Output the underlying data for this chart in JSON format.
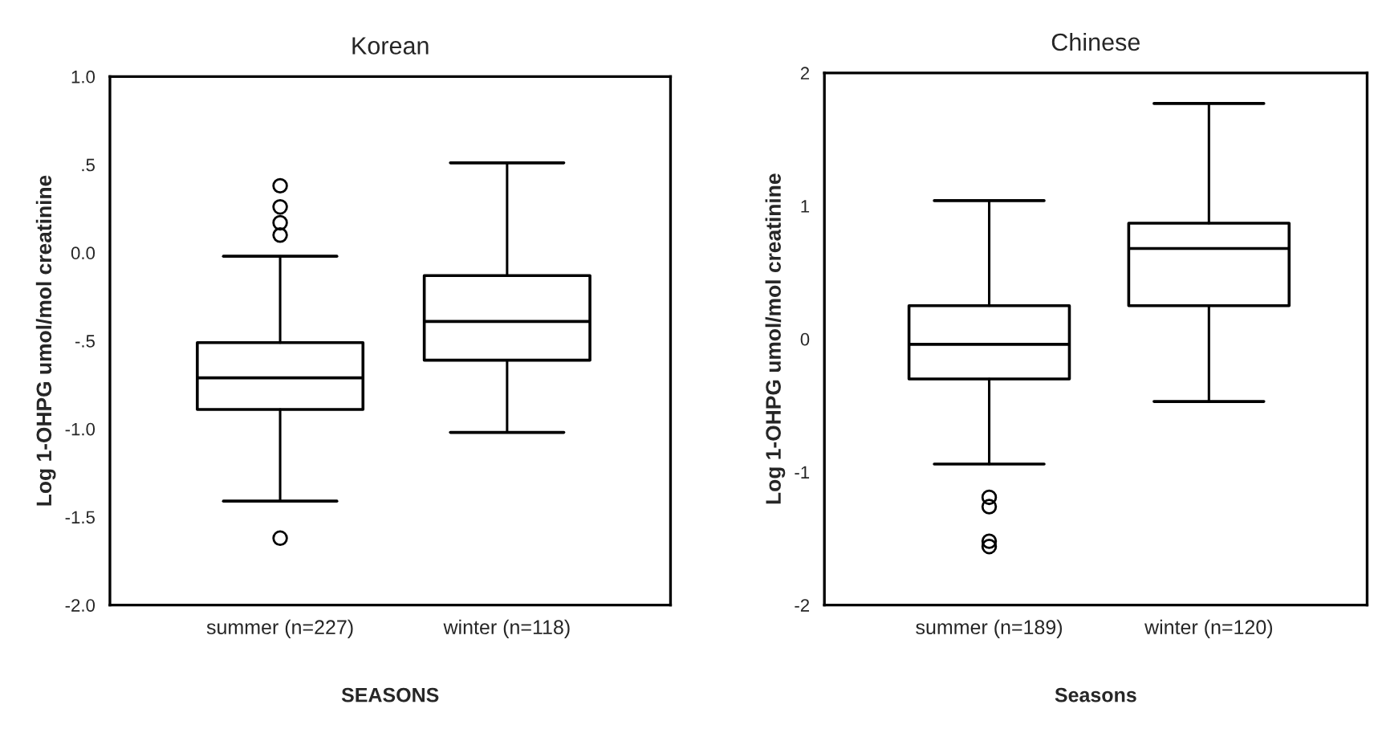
{
  "chart_data": [
    {
      "type": "box",
      "title": "Korean",
      "xlabel": "SEASONS",
      "ylabel": "Log 1-OHPG umol/mol creatinine",
      "categories": [
        "summer (n=227)",
        "winter (n=118)"
      ],
      "boxes": [
        {
          "low": -1.41,
          "q1": -0.89,
          "median": -0.71,
          "q3": -0.51,
          "high": -0.02,
          "outliers": [
            0.38,
            0.26,
            0.17,
            0.1,
            -1.62
          ]
        },
        {
          "low": -1.02,
          "q1": -0.61,
          "median": -0.39,
          "q3": -0.13,
          "high": 0.51
        }
      ],
      "ylim": [
        -2.0,
        1.0
      ],
      "yticks": [
        {
          "value": 1.0,
          "label": "1.0"
        },
        {
          "value": 0.5,
          "label": ".5"
        },
        {
          "value": 0.0,
          "label": "0.0"
        },
        {
          "value": -0.5,
          "label": "-.5"
        },
        {
          "value": -1.0,
          "label": "-1.0"
        },
        {
          "value": -1.5,
          "label": "-1.5"
        },
        {
          "value": -2.0,
          "label": "-2.0"
        }
      ],
      "grid": false,
      "legend": false
    },
    {
      "type": "box",
      "title": "Chinese",
      "xlabel": "Seasons",
      "ylabel": "Log 1-OHPG umol/mol creatinine",
      "categories": [
        "summer (n=189)",
        "winter (n=120)"
      ],
      "boxes": [
        {
          "low": -0.94,
          "q1": -0.3,
          "median": -0.04,
          "q3": 0.25,
          "high": 1.04,
          "outliers": [
            -1.19,
            -1.26,
            -1.52,
            -1.56
          ]
        },
        {
          "low": -0.47,
          "q1": 0.25,
          "median": 0.68,
          "q3": 0.87,
          "high": 1.77
        }
      ],
      "ylim": [
        -2,
        2
      ],
      "yticks": [
        2,
        1,
        0,
        -1,
        -2
      ],
      "grid": false,
      "legend": false
    }
  ]
}
